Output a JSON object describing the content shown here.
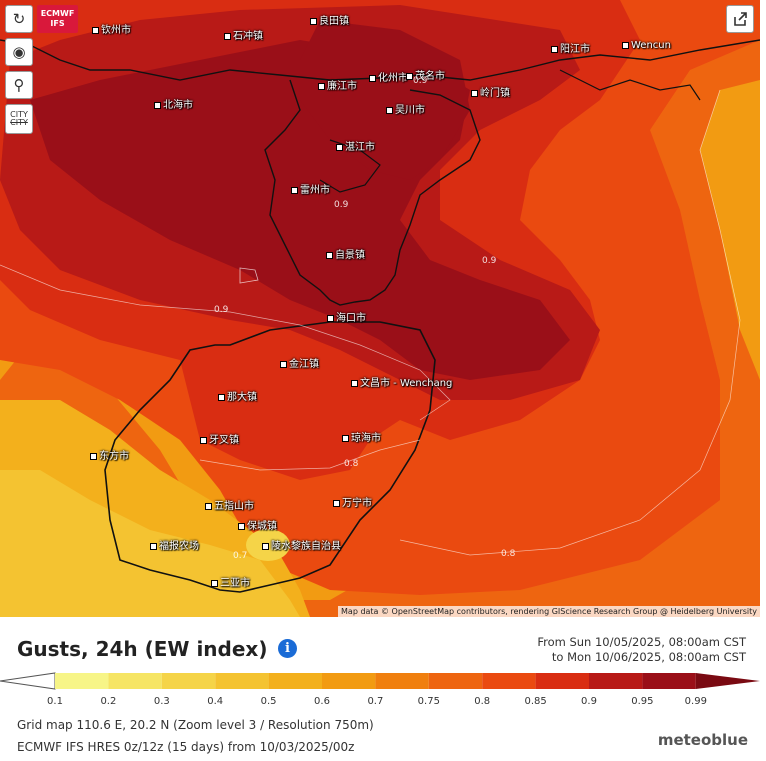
{
  "model_badge": [
    "ECMWF",
    "IFS"
  ],
  "controls": {
    "city_toggle": [
      "CITY",
      "CITY"
    ]
  },
  "attribution": "Map data © OpenStreetMap contributors, rendering GIScience Research Group @ Heidelberg University",
  "places": [
    "钦州市",
    "石冲镇",
    "良田镇",
    "北海市",
    "廉江市",
    "化州市",
    "茂名市",
    "阳江市",
    "Wencun",
    "吴川市",
    "岭门镇",
    "湛江市",
    "雷州市",
    "自景镇",
    "海口市",
    "金江镇",
    "文昌市 - Wenchang",
    "那大镇",
    "牙叉镇",
    "琼海市",
    "东方市",
    "五指山市",
    "万宁市",
    "保城镇",
    "陵水黎族自治县",
    "福报农场",
    "三亚市"
  ],
  "contour_labels": [
    "0.9",
    "0.9",
    "0.9",
    "0.9",
    "0.8",
    "0.8",
    "0.7"
  ],
  "title": "Gusts, 24h (EW index)",
  "date_from": "From Sun 10/05/2025, 08:00am CST",
  "date_to": "to Mon 10/06/2025, 08:00am CST",
  "legend": {
    "ticks": [
      "0.1",
      "0.2",
      "0.3",
      "0.4",
      "0.5",
      "0.6",
      "0.7",
      "0.75",
      "0.8",
      "0.85",
      "0.9",
      "0.95",
      "0.99"
    ],
    "colors": [
      "#f7f587",
      "#f6e564",
      "#f5d448",
      "#f4c331",
      "#f3b01c",
      "#f29b12",
      "#f07f0e",
      "#ee6510",
      "#ea4a10",
      "#d92d12",
      "#b81a17",
      "#9a0f18",
      "#7a0a12"
    ]
  },
  "grid_info": "Grid map 110.6 E, 20.2 N (Zoom level 3 / Resolution 750m)",
  "model_info": "ECMWF IFS HRES 0z/12z (15 days) from 10/03/2025/00z",
  "logo": "meteoblue"
}
